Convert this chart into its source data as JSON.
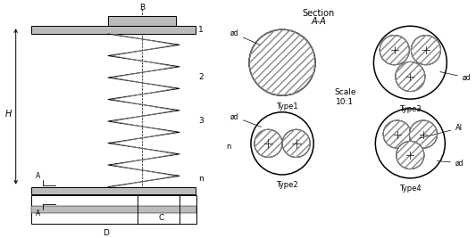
{
  "bg_color": "#ffffff",
  "line_color": "#000000",
  "labels": {
    "B": "B",
    "C": "C",
    "D": "D",
    "H": "H",
    "A_top": "A",
    "A_bot": "A",
    "n1": "1",
    "n2": "2",
    "n3": "3",
    "n": "n",
    "type1": "Type1",
    "type2": "Type2",
    "type3": "Type3",
    "type4": "Type4",
    "phi_d": "ød",
    "Al": "Al",
    "section": "Section",
    "aa": "A-A",
    "scale": "Scale\n10:1"
  }
}
